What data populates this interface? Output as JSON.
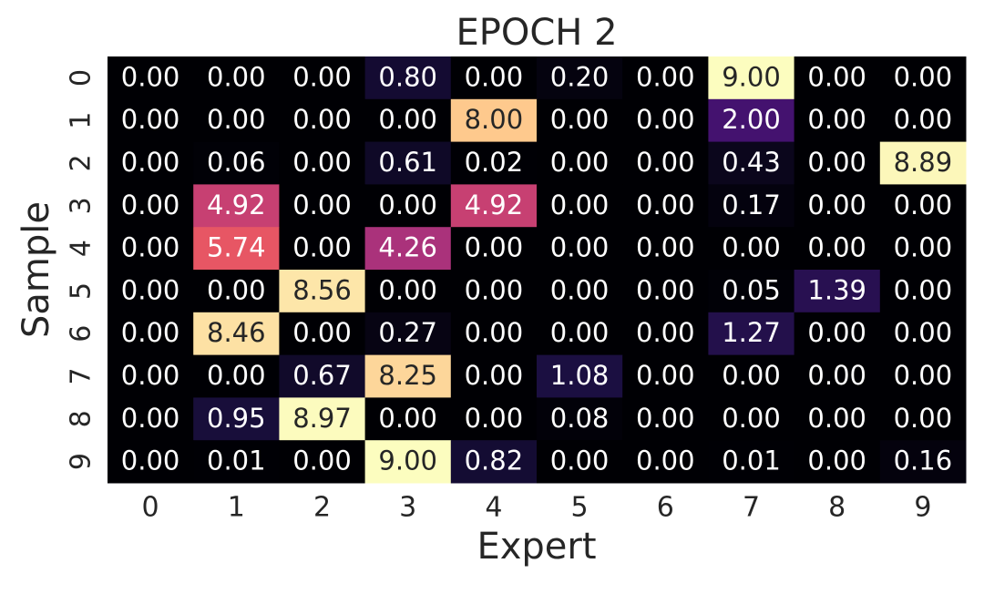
{
  "chart_data": {
    "type": "heatmap",
    "title": "EPOCH 2",
    "xlabel": "Expert",
    "ylabel": "Sample",
    "xcategories": [
      "0",
      "1",
      "2",
      "3",
      "4",
      "5",
      "6",
      "7",
      "8",
      "9"
    ],
    "ycategories": [
      "0",
      "1",
      "2",
      "3",
      "4",
      "5",
      "6",
      "7",
      "8",
      "9"
    ],
    "colormap": "magma",
    "zlim": [
      0,
      9
    ],
    "values": [
      [
        0,
        0,
        0,
        0.8,
        0,
        0.2,
        0,
        9,
        0,
        0
      ],
      [
        0,
        0,
        0,
        0,
        8,
        0,
        0,
        2,
        0,
        0
      ],
      [
        0,
        0.06,
        0,
        0.61,
        0.02,
        0,
        0,
        0.43,
        0,
        8.89
      ],
      [
        0,
        4.92,
        0,
        0,
        4.92,
        0,
        0,
        0.17,
        0,
        0
      ],
      [
        0,
        5.74,
        0,
        4.26,
        0,
        0,
        0,
        0,
        0,
        0
      ],
      [
        0,
        0,
        8.56,
        0,
        0,
        0,
        0,
        0.05,
        1.39,
        0
      ],
      [
        0,
        8.46,
        0,
        0.27,
        0,
        0,
        0,
        1.27,
        0,
        0
      ],
      [
        0,
        0,
        0.67,
        8.25,
        0,
        1.08,
        0,
        0,
        0,
        0
      ],
      [
        0,
        0.95,
        8.97,
        0,
        0,
        0.08,
        0,
        0,
        0,
        0
      ],
      [
        0,
        0.01,
        0,
        9,
        0.82,
        0,
        0,
        0.01,
        0,
        0.16
      ]
    ],
    "value_labels": [
      [
        "0.00",
        "0.00",
        "0.00",
        "0.80",
        "0.00",
        "0.20",
        "0.00",
        "9.00",
        "0.00",
        "0.00"
      ],
      [
        "0.00",
        "0.00",
        "0.00",
        "0.00",
        "8.00",
        "0.00",
        "0.00",
        "2.00",
        "0.00",
        "0.00"
      ],
      [
        "0.00",
        "0.06",
        "0.00",
        "0.61",
        "0.02",
        "0.00",
        "0.00",
        "0.43",
        "0.00",
        "8.89"
      ],
      [
        "0.00",
        "4.92",
        "0.00",
        "0.00",
        "4.92",
        "0.00",
        "0.00",
        "0.17",
        "0.00",
        "0.00"
      ],
      [
        "0.00",
        "5.74",
        "0.00",
        "4.26",
        "0.00",
        "0.00",
        "0.00",
        "0.00",
        "0.00",
        "0.00"
      ],
      [
        "0.00",
        "0.00",
        "8.56",
        "0.00",
        "0.00",
        "0.00",
        "0.00",
        "0.05",
        "1.39",
        "0.00"
      ],
      [
        "0.00",
        "8.46",
        "0.00",
        "0.27",
        "0.00",
        "0.00",
        "0.00",
        "1.27",
        "0.00",
        "0.00"
      ],
      [
        "0.00",
        "0.00",
        "0.67",
        "8.25",
        "0.00",
        "1.08",
        "0.00",
        "0.00",
        "0.00",
        "0.00"
      ],
      [
        "0.00",
        "0.95",
        "8.97",
        "0.00",
        "0.00",
        "0.08",
        "0.00",
        "0.00",
        "0.00",
        "0.00"
      ],
      [
        "0.00",
        "0.01",
        "0.00",
        "9.00",
        "0.82",
        "0.00",
        "0.00",
        "0.01",
        "0.00",
        "0.16"
      ]
    ]
  }
}
